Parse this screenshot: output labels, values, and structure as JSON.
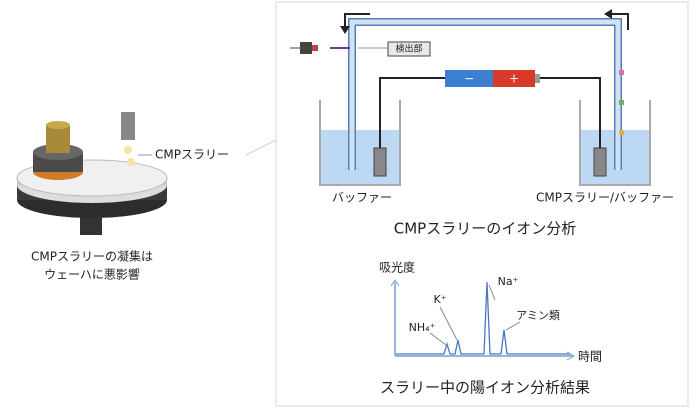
{
  "left": {
    "slurry_label": "CMPスラリー",
    "caption_lines": [
      "CMPスラリーの凝集は",
      "ウェーハに悪影響"
    ]
  },
  "apparatus": {
    "detector": "検出部",
    "minus": "−",
    "plus": "+",
    "left_beaker": "バッファー",
    "right_beaker": "CMPスラリー/バッファー",
    "title": "CMPスラリーのイオン分析"
  },
  "result": {
    "y_label": "吸光度",
    "x_label": "時間",
    "peaks": [
      "NH₄⁺",
      "K⁺",
      "Na⁺",
      "アミン類"
    ],
    "title": "スラリー中の陽イオン分析結果"
  }
}
